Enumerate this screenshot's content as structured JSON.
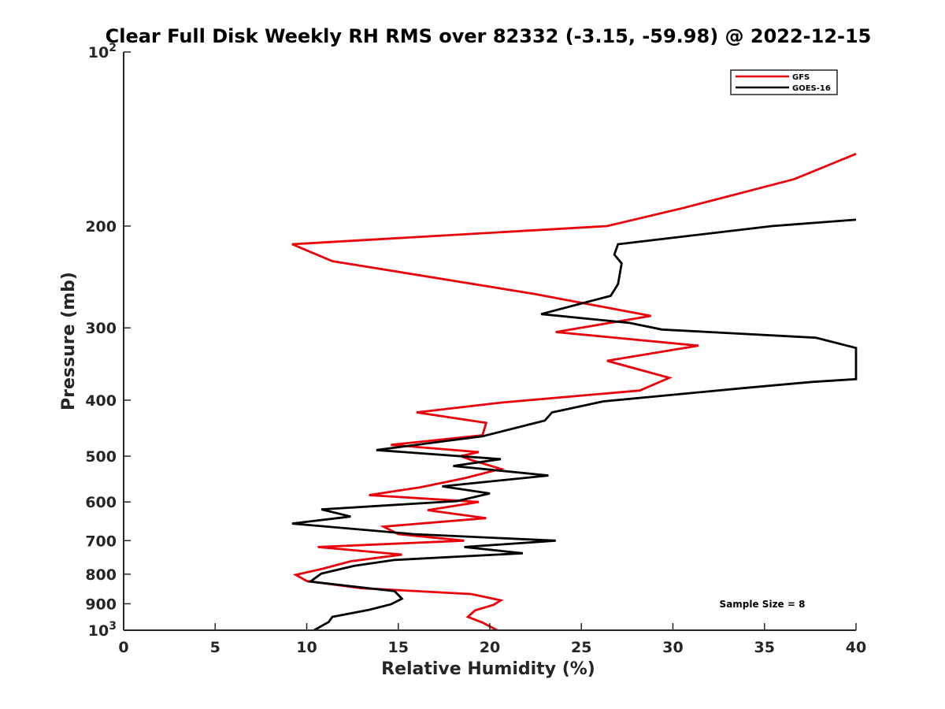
{
  "chart_data": {
    "type": "line",
    "title": "Clear Full Disk Weekly RH RMS over 82332 (-3.15, -59.98) @ 2022-12-15",
    "xlabel": "Relative Humidity (%)",
    "ylabel": "Pressure (mb)",
    "xlim": [
      0,
      40
    ],
    "ylim": [
      100,
      1000
    ],
    "y_scale": "log",
    "y_reversed": true,
    "grid": false,
    "legend_position": "top-right",
    "x_ticks": [
      0,
      5,
      10,
      15,
      20,
      25,
      30,
      35,
      40
    ],
    "y_ticks": [
      {
        "value": 100,
        "label": "10",
        "sup": "2"
      },
      {
        "value": 200,
        "label": "200"
      },
      {
        "value": 300,
        "label": "300"
      },
      {
        "value": 400,
        "label": "400"
      },
      {
        "value": 500,
        "label": "500"
      },
      {
        "value": 600,
        "label": "600"
      },
      {
        "value": 700,
        "label": "700"
      },
      {
        "value": 800,
        "label": "800"
      },
      {
        "value": 900,
        "label": "900"
      },
      {
        "value": 1000,
        "label": "10",
        "sup": "3"
      }
    ],
    "annotation": "Sample Size = 8",
    "series": [
      {
        "name": "GFS",
        "color": "#e8000b",
        "points": [
          [
            40.0,
            150
          ],
          [
            36.6,
            166
          ],
          [
            30.6,
            186
          ],
          [
            26.4,
            200
          ],
          [
            9.2,
            215
          ],
          [
            11.4,
            230
          ],
          [
            22.4,
            262
          ],
          [
            28.8,
            286
          ],
          [
            23.6,
            305
          ],
          [
            31.4,
            322
          ],
          [
            26.4,
            342
          ],
          [
            29.8,
            366
          ],
          [
            28.2,
            385
          ],
          [
            20.6,
            404
          ],
          [
            16.0,
            420
          ],
          [
            19.8,
            438
          ],
          [
            19.6,
            460
          ],
          [
            14.6,
            478
          ],
          [
            19.4,
            492
          ],
          [
            18.4,
            500
          ],
          [
            19.0,
            508
          ],
          [
            20.6,
            526
          ],
          [
            18.6,
            546
          ],
          [
            16.2,
            566
          ],
          [
            13.4,
            584
          ],
          [
            19.4,
            600
          ],
          [
            16.6,
            620
          ],
          [
            19.8,
            640
          ],
          [
            14.2,
            662
          ],
          [
            15.0,
            682
          ],
          [
            18.6,
            700
          ],
          [
            10.6,
            718
          ],
          [
            15.2,
            740
          ],
          [
            12.4,
            760
          ],
          [
            10.8,
            784
          ],
          [
            9.4,
            802
          ],
          [
            10.0,
            822
          ],
          [
            13.0,
            846
          ],
          [
            19.0,
            866
          ],
          [
            20.6,
            888
          ],
          [
            20.2,
            904
          ],
          [
            19.2,
            924
          ],
          [
            18.8,
            948
          ],
          [
            19.6,
            970
          ],
          [
            20.4,
            1000
          ]
        ]
      },
      {
        "name": "GOES-16",
        "color": "#000000",
        "points": [
          [
            40.0,
            195
          ],
          [
            35.4,
            200
          ],
          [
            27.0,
            215
          ],
          [
            26.8,
            224
          ],
          [
            27.2,
            232
          ],
          [
            27.0,
            252
          ],
          [
            26.6,
            264
          ],
          [
            22.8,
            284
          ],
          [
            27.6,
            294
          ],
          [
            29.4,
            302
          ],
          [
            37.8,
            312
          ],
          [
            40.0,
            325
          ],
          [
            40.0,
            368
          ],
          [
            37.6,
            372
          ],
          [
            33.6,
            382
          ],
          [
            26.2,
            402
          ],
          [
            23.4,
            420
          ],
          [
            23.0,
            434
          ],
          [
            19.6,
            462
          ],
          [
            13.8,
            488
          ],
          [
            20.6,
            506
          ],
          [
            18.0,
            520
          ],
          [
            23.2,
            540
          ],
          [
            17.4,
            564
          ],
          [
            20.0,
            580
          ],
          [
            18.2,
            598
          ],
          [
            10.8,
            618
          ],
          [
            12.4,
            636
          ],
          [
            9.2,
            654
          ],
          [
            15.8,
            682
          ],
          [
            23.6,
            700
          ],
          [
            18.6,
            718
          ],
          [
            21.8,
            736
          ],
          [
            14.8,
            756
          ],
          [
            12.6,
            774
          ],
          [
            10.8,
            798
          ],
          [
            10.2,
            824
          ],
          [
            14.8,
            856
          ],
          [
            15.2,
            882
          ],
          [
            14.6,
            902
          ],
          [
            13.4,
            922
          ],
          [
            11.4,
            948
          ],
          [
            11.2,
            968
          ],
          [
            10.4,
            1000
          ]
        ]
      }
    ]
  }
}
